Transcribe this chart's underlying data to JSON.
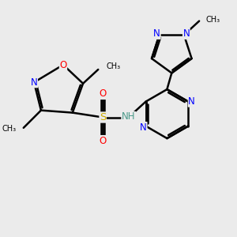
{
  "bg_color": "#ebebeb",
  "bond_color": "#000000",
  "bond_width": 1.8,
  "atom_colors": {
    "N": "#0000ff",
    "O": "#ff0000",
    "S": "#ccaa00",
    "C": "#000000",
    "H": "#4a9a8a"
  },
  "font_size": 8.5,
  "figsize": [
    3.0,
    3.0
  ],
  "dpi": 100,
  "xlim": [
    0,
    10
  ],
  "ylim": [
    0,
    10
  ]
}
